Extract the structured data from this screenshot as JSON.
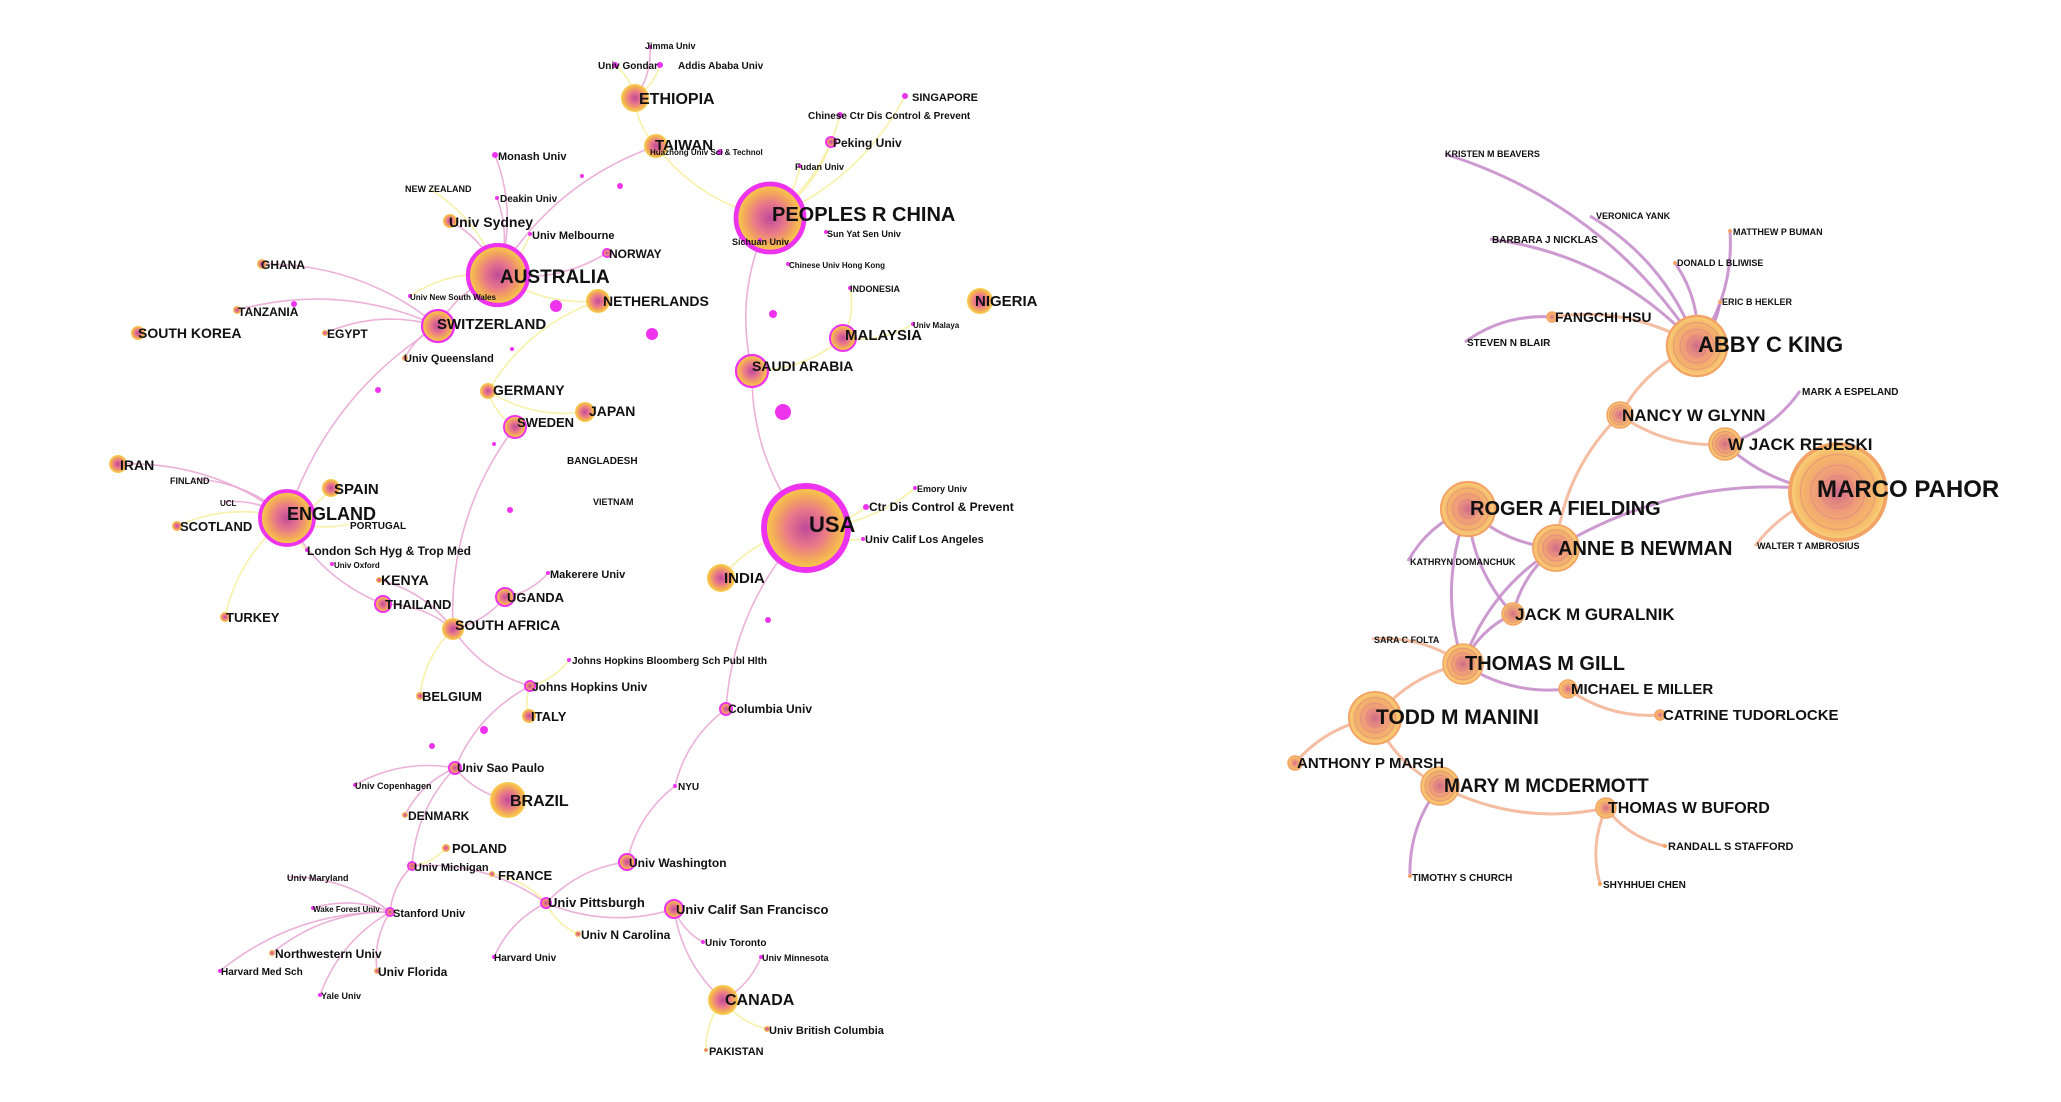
{
  "colors": {
    "hub_ring": "#ee33ee",
    "node_center": "#cc5599",
    "node_mid": "#f2a05a",
    "node_edge": "#f7d24a",
    "author_ring": "#f2a365",
    "link_pink": "#e8a3d2",
    "link_yellow": "#f6ef9a",
    "link_orange": "#f3b291",
    "link_purple": "#c388c8"
  },
  "left_network": {
    "nodes": [
      {
        "id": "jimma",
        "label": "Jimma Univ"
      },
      {
        "id": "univgondar",
        "label": "Univ Gondar"
      },
      {
        "id": "addis",
        "label": "Addis Ababa Univ"
      },
      {
        "id": "ethiopia",
        "label": "ETHIOPIA"
      },
      {
        "id": "singapore",
        "label": "SINGAPORE"
      },
      {
        "id": "chinesectr",
        "label": "Chinese Ctr Dis Control & Prevent"
      },
      {
        "id": "taiwan",
        "label": "TAIWAN"
      },
      {
        "id": "peking",
        "label": "Peking Univ"
      },
      {
        "id": "huazhong",
        "label": "Huazhong Univ Sci & Technol"
      },
      {
        "id": "fudan",
        "label": "Fudan Univ"
      },
      {
        "id": "monash",
        "label": "Monash Univ"
      },
      {
        "id": "newzealand",
        "label": "NEW ZEALAND"
      },
      {
        "id": "deakin",
        "label": "Deakin Univ"
      },
      {
        "id": "china",
        "label": "PEOPLES R CHINA"
      },
      {
        "id": "univsydney",
        "label": "Univ Sydney"
      },
      {
        "id": "univmelbourne",
        "label": "Univ Melbourne"
      },
      {
        "id": "sunyatsen",
        "label": "Sun Yat Sen Univ"
      },
      {
        "id": "sichuan",
        "label": "Sichuan Univ"
      },
      {
        "id": "norway",
        "label": "NORWAY"
      },
      {
        "id": "ghana",
        "label": "GHANA"
      },
      {
        "id": "australia",
        "label": "AUSTRALIA"
      },
      {
        "id": "cuhk",
        "label": "Chinese Univ Hong Kong"
      },
      {
        "id": "unsw",
        "label": "Univ New South Wales"
      },
      {
        "id": "indonesia",
        "label": "INDONESIA"
      },
      {
        "id": "tanzania",
        "label": "TANZANIA"
      },
      {
        "id": "netherlands",
        "label": "NETHERLANDS"
      },
      {
        "id": "nigeria",
        "label": "NIGERIA"
      },
      {
        "id": "switzerland",
        "label": "SWITZERLAND"
      },
      {
        "id": "univmalaya",
        "label": "Univ Malaya"
      },
      {
        "id": "southkorea",
        "label": "SOUTH KOREA"
      },
      {
        "id": "egypt",
        "label": "EGYPT"
      },
      {
        "id": "malaysia",
        "label": "MALAYSIA"
      },
      {
        "id": "univqueensland",
        "label": "Univ Queensland"
      },
      {
        "id": "saudi",
        "label": "SAUDI ARABIA"
      },
      {
        "id": "germany",
        "label": "GERMANY"
      },
      {
        "id": "japan",
        "label": "JAPAN"
      },
      {
        "id": "sweden",
        "label": "SWEDEN"
      },
      {
        "id": "iran",
        "label": "IRAN"
      },
      {
        "id": "bangladesh",
        "label": "BANGLADESH"
      },
      {
        "id": "finland",
        "label": "FINLAND"
      },
      {
        "id": "spain",
        "label": "SPAIN"
      },
      {
        "id": "emory",
        "label": "Emory Univ"
      },
      {
        "id": "ucl",
        "label": "UCL"
      },
      {
        "id": "vietnam",
        "label": "VIETNAM"
      },
      {
        "id": "ctrdis",
        "label": "Ctr Dis Control & Prevent"
      },
      {
        "id": "england",
        "label": "ENGLAND"
      },
      {
        "id": "usa",
        "label": "USA"
      },
      {
        "id": "portugal",
        "label": "PORTUGAL"
      },
      {
        "id": "scotland",
        "label": "SCOTLAND"
      },
      {
        "id": "ucla",
        "label": "Univ Calif Los Angeles"
      },
      {
        "id": "lshtm",
        "label": "London Sch Hyg & Trop Med"
      },
      {
        "id": "univoxford",
        "label": "Univ Oxford"
      },
      {
        "id": "makerere",
        "label": "Makerere Univ"
      },
      {
        "id": "kenya",
        "label": "KENYA"
      },
      {
        "id": "india",
        "label": "INDIA"
      },
      {
        "id": "uganda",
        "label": "UGANDA"
      },
      {
        "id": "thailand",
        "label": "THAILAND"
      },
      {
        "id": "turkey",
        "label": "TURKEY"
      },
      {
        "id": "southafrica",
        "label": "SOUTH AFRICA"
      },
      {
        "id": "jhsph",
        "label": "Johns Hopkins Bloomberg Sch Publ Hlth"
      },
      {
        "id": "jhu",
        "label": "Johns Hopkins Univ"
      },
      {
        "id": "belgium",
        "label": "BELGIUM"
      },
      {
        "id": "columbia",
        "label": "Columbia Univ"
      },
      {
        "id": "italy",
        "label": "ITALY"
      },
      {
        "id": "saopaulo",
        "label": "Univ Sao Paulo"
      },
      {
        "id": "copenhagen",
        "label": "Univ Copenhagen"
      },
      {
        "id": "nyu",
        "label": "NYU"
      },
      {
        "id": "brazil",
        "label": "BRAZIL"
      },
      {
        "id": "denmark",
        "label": "DENMARK"
      },
      {
        "id": "poland",
        "label": "POLAND"
      },
      {
        "id": "uwash",
        "label": "Univ Washington"
      },
      {
        "id": "umich",
        "label": "Univ Michigan"
      },
      {
        "id": "france",
        "label": "FRANCE"
      },
      {
        "id": "umaryland",
        "label": "Univ Maryland"
      },
      {
        "id": "pitt",
        "label": "Univ Pittsburgh"
      },
      {
        "id": "ucsf",
        "label": "Univ Calif San Francisco"
      },
      {
        "id": "wakeforest",
        "label": "Wake Forest Univ"
      },
      {
        "id": "stanford",
        "label": "Stanford Univ"
      },
      {
        "id": "unc",
        "label": "Univ N Carolina"
      },
      {
        "id": "northwestern",
        "label": "Northwestern Univ"
      },
      {
        "id": "utoronto",
        "label": "Univ Toronto"
      },
      {
        "id": "uminnesota",
        "label": "Univ Minnesota"
      },
      {
        "id": "harvardmed",
        "label": "Harvard Med Sch"
      },
      {
        "id": "uflorida",
        "label": "Univ Florida"
      },
      {
        "id": "harvard",
        "label": "Harvard Univ"
      },
      {
        "id": "yale",
        "label": "Yale Univ"
      },
      {
        "id": "canada",
        "label": "CANADA"
      },
      {
        "id": "ubc",
        "label": "Univ British Columbia"
      },
      {
        "id": "pakistan",
        "label": "PAKISTAN"
      }
    ]
  },
  "right_network": {
    "nodes": [
      {
        "id": "beavers",
        "label": "KRISTEN M BEAVERS"
      },
      {
        "id": "yank",
        "label": "VERONICA YANK"
      },
      {
        "id": "buman",
        "label": "MATTHEW P BUMAN"
      },
      {
        "id": "nicklas",
        "label": "BARBARA J NICKLAS"
      },
      {
        "id": "bliwise",
        "label": "DONALD L BLIWISE"
      },
      {
        "id": "hekler",
        "label": "ERIC B HEKLER"
      },
      {
        "id": "hsu",
        "label": "FANGCHI HSU"
      },
      {
        "id": "blair",
        "label": "STEVEN N BLAIR"
      },
      {
        "id": "king",
        "label": "ABBY C KING"
      },
      {
        "id": "espeland",
        "label": "MARK A ESPELAND"
      },
      {
        "id": "glynn",
        "label": "NANCY W GLYNN"
      },
      {
        "id": "rejeski",
        "label": "W JACK REJESKI"
      },
      {
        "id": "pahor",
        "label": "MARCO PAHOR"
      },
      {
        "id": "fielding",
        "label": "ROGER A FIELDING"
      },
      {
        "id": "ambrosius",
        "label": "WALTER T AMBROSIUS"
      },
      {
        "id": "newman",
        "label": "ANNE B NEWMAN"
      },
      {
        "id": "domanchuk",
        "label": "KATHRYN DOMANCHUK"
      },
      {
        "id": "guralnik",
        "label": "JACK M GURALNIK"
      },
      {
        "id": "folta",
        "label": "SARA C FOLTA"
      },
      {
        "id": "gill",
        "label": "THOMAS M GILL"
      },
      {
        "id": "miller",
        "label": "MICHAEL E MILLER"
      },
      {
        "id": "manini",
        "label": "TODD M MANINI"
      },
      {
        "id": "tudorlocke",
        "label": "CATRINE TUDORLOCKE"
      },
      {
        "id": "marsh",
        "label": "ANTHONY P MARSH"
      },
      {
        "id": "mcdermott",
        "label": "MARY M MCDERMOTT"
      },
      {
        "id": "buford",
        "label": "THOMAS W BUFORD"
      },
      {
        "id": "stafford",
        "label": "RANDALL S STAFFORD"
      },
      {
        "id": "church",
        "label": "TIMOTHY S CHURCH"
      },
      {
        "id": "chen",
        "label": "SHYHHUEI CHEN"
      }
    ]
  }
}
